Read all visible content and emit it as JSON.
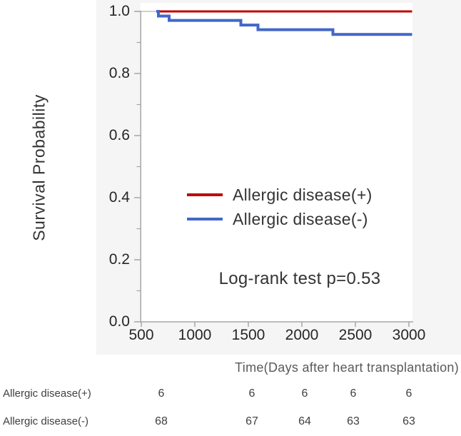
{
  "chart": {
    "y_axis_title": "Survival Probability",
    "x_axis_title": "Time(Days after heart transplantation)",
    "annotation": "Log-rank test p=0.53"
  },
  "chart_data": {
    "type": "line",
    "subtype": "kaplan-meier-step-curve",
    "title": "",
    "xlabel": "Time(Days after heart transplantation)",
    "ylabel": "Survival Probability",
    "xlim": [
      490,
      3030
    ],
    "ylim": [
      0.0,
      1.0
    ],
    "xticks": [
      500,
      1000,
      1500,
      2000,
      2500,
      3000
    ],
    "yticks": [
      "1.0",
      "0.8",
      "0.6",
      "0.4",
      "0.2",
      "0.0"
    ],
    "grid": false,
    "legend_position": "inside-center-left",
    "annotation": "Log-rank test p=0.53",
    "axis_color": "#a6a6a6",
    "series": [
      {
        "name": "Allergic disease(+)",
        "color": "#c00000",
        "step_points": [
          [
            640,
            1.0
          ]
        ],
        "end_x": 3030
      },
      {
        "name": "Allergic disease(-)",
        "color": "#4267c8",
        "step_points": [
          [
            640,
            1.0
          ],
          [
            660,
            0.985
          ],
          [
            760,
            0.971
          ],
          [
            1430,
            0.956
          ],
          [
            1590,
            0.941
          ],
          [
            2290,
            0.926
          ]
        ],
        "end_x": 3030
      }
    ]
  },
  "risk_table": {
    "rows": [
      {
        "label": "Allergic disease(+)",
        "values": [
          "6",
          "6",
          "6",
          "6",
          "6"
        ]
      },
      {
        "label": "Allergic disease(-)",
        "values": [
          "68",
          "67",
          "64",
          "63",
          "63"
        ]
      }
    ]
  }
}
